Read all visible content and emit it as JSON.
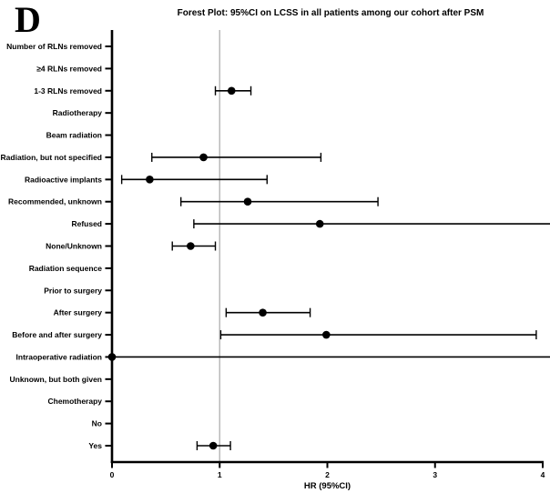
{
  "panel_label": "D",
  "title": "Forest Plot: 95%CI on LCSS in all patients among our cohort after PSM",
  "colors": {
    "axis": "#000000",
    "reference_line": "#b9b9b9",
    "marker": "#000000",
    "text": "#000000"
  },
  "chart_data": {
    "type": "scatter",
    "subtype": "forest-plot",
    "title": "Forest Plot: 95%CI on LCSS in all patients among our cohort after PSM",
    "xlabel": "HR (95%CI)",
    "ylabel": "",
    "xlim": [
      0,
      4
    ],
    "x_ticks": [
      0,
      1,
      2,
      3,
      4
    ],
    "reference_x": 1,
    "grid": false,
    "legend": "none",
    "rows": [
      {
        "label": "Number of RLNs removed",
        "hr": null,
        "lo": null,
        "hi": null,
        "hi_clipped": false
      },
      {
        "label": "≥4 RLNs removed",
        "hr": null,
        "lo": null,
        "hi": null,
        "hi_clipped": false
      },
      {
        "label": "1-3 RLNs removed",
        "hr": 1.11,
        "lo": 0.96,
        "hi": 1.29,
        "hi_clipped": false
      },
      {
        "label": "Radiotherapy",
        "hr": null,
        "lo": null,
        "hi": null,
        "hi_clipped": false
      },
      {
        "label": "Beam radiation",
        "hr": null,
        "lo": null,
        "hi": null,
        "hi_clipped": false
      },
      {
        "label": "Radiation, but not specified",
        "hr": 0.85,
        "lo": 0.37,
        "hi": 1.94,
        "hi_clipped": false
      },
      {
        "label": "Radioactive implants",
        "hr": 0.35,
        "lo": 0.09,
        "hi": 1.44,
        "hi_clipped": false
      },
      {
        "label": "Recommended, unknown",
        "hr": 1.26,
        "lo": 0.64,
        "hi": 2.47,
        "hi_clipped": false
      },
      {
        "label": "Refused",
        "hr": 1.93,
        "lo": 0.76,
        "hi": 4.07,
        "hi_clipped": true
      },
      {
        "label": "None/Unknown",
        "hr": 0.73,
        "lo": 0.56,
        "hi": 0.96,
        "hi_clipped": false
      },
      {
        "label": "Radiation sequence",
        "hr": null,
        "lo": null,
        "hi": null,
        "hi_clipped": false
      },
      {
        "label": "Prior to surgery",
        "hr": null,
        "lo": null,
        "hi": null,
        "hi_clipped": false
      },
      {
        "label": "After surgery",
        "hr": 1.4,
        "lo": 1.06,
        "hi": 1.84,
        "hi_clipped": false
      },
      {
        "label": "Before and after surgery",
        "hr": 1.99,
        "lo": 1.01,
        "hi": 3.94,
        "hi_clipped": false
      },
      {
        "label": "Intraoperative radiation",
        "hr": 0.0,
        "lo": 0.0,
        "hi": 4.07,
        "hi_clipped": true
      },
      {
        "label": "Unknown, but both given",
        "hr": null,
        "lo": null,
        "hi": null,
        "hi_clipped": false
      },
      {
        "label": "Chemotherapy",
        "hr": null,
        "lo": null,
        "hi": null,
        "hi_clipped": false
      },
      {
        "label": "No",
        "hr": null,
        "lo": null,
        "hi": null,
        "hi_clipped": false
      },
      {
        "label": "Yes",
        "hr": 0.94,
        "lo": 0.79,
        "hi": 1.1,
        "hi_clipped": false
      }
    ]
  }
}
